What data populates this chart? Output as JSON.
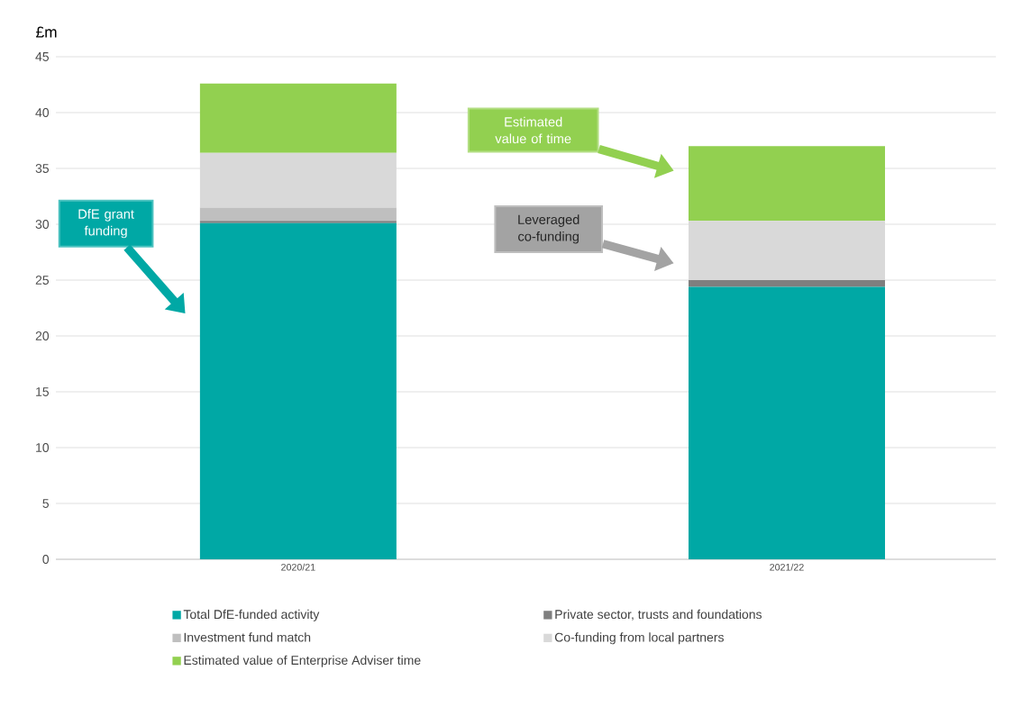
{
  "chart_data": {
    "type": "bar",
    "stacked": true,
    "ylabel": "£m",
    "categories": [
      "2020/21",
      "2021/22"
    ],
    "series": [
      {
        "name": "Total DfE-funded activity",
        "color": "#00a8a5",
        "values": [
          30.1,
          24.4
        ]
      },
      {
        "name": "Private sector, trusts and foundations",
        "color": "#7f7f7f",
        "values": [
          0.2,
          0.6
        ]
      },
      {
        "name": "Investment fund match",
        "color": "#bfbfbf",
        "values": [
          1.2,
          0
        ]
      },
      {
        "name": "Co-funding from local partners",
        "color": "#d9d9d9",
        "values": [
          4.9,
          5.3
        ]
      },
      {
        "name": "Estimated value of Enterprise Adviser time",
        "color": "#92d050",
        "values": [
          6.2,
          6.7
        ]
      }
    ],
    "ylim": [
      0,
      45
    ],
    "yticks": [
      0,
      5,
      10,
      15,
      20,
      25,
      30,
      35,
      40,
      45
    ],
    "grid": "y",
    "legend": "bottom",
    "annotations": [
      "DfE grant funding",
      "Estimated value of time",
      "Leveraged co-funding"
    ]
  }
}
